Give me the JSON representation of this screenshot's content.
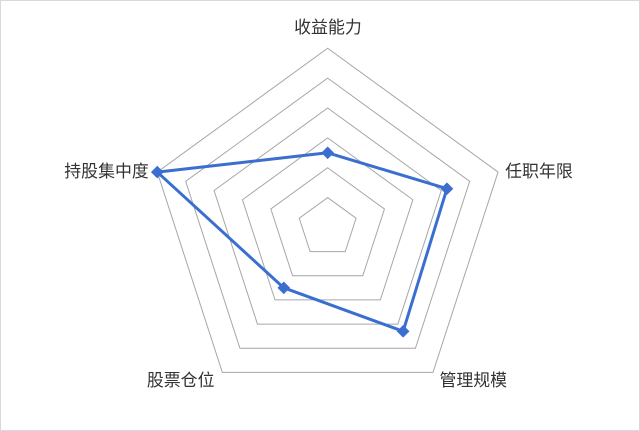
{
  "chart_data": {
    "type": "radar",
    "categories": [
      "收益能力",
      "任职年限",
      "管理规模",
      "股票仓位",
      "持股集中度"
    ],
    "values": [
      2.5,
      4.2,
      4.3,
      2.5,
      6
    ],
    "rlim": [
      0,
      6
    ],
    "grid_levels": 6,
    "grid": true,
    "legend": "none",
    "series_color": "#3a6fd0",
    "grid_color": "#a6a6a6"
  }
}
